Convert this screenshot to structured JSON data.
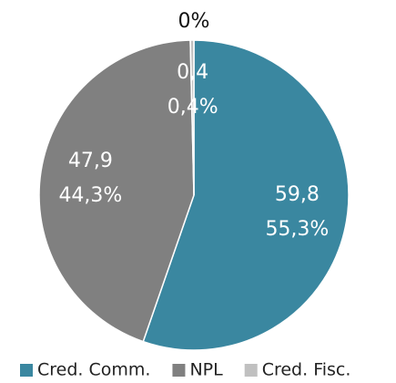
{
  "chart_data": {
    "type": "pie",
    "annotation": "0%",
    "categories": [
      "Cred. Comm.",
      "NPL",
      "Cred. Fisc."
    ],
    "values": [
      59.8,
      47.9,
      0.4
    ],
    "value_labels": [
      "59,8",
      "47,9",
      "0,4"
    ],
    "percent_labels": [
      "55,3%",
      "44,3%",
      "0,4%"
    ],
    "colors": [
      "#3a87a0",
      "#808080",
      "#c0c0c0"
    ],
    "legend": "bottom"
  }
}
